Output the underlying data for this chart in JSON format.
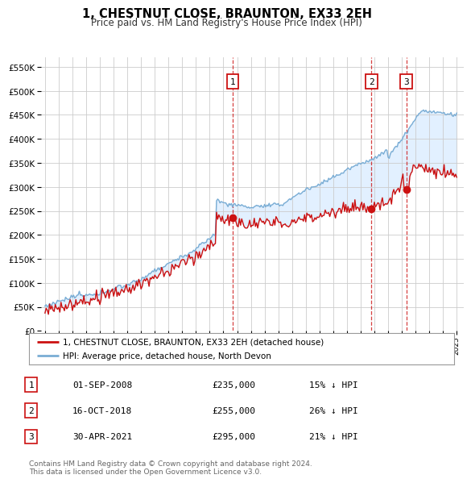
{
  "title": "1, CHESTNUT CLOSE, BRAUNTON, EX33 2EH",
  "subtitle": "Price paid vs. HM Land Registry's House Price Index (HPI)",
  "hpi_line_color": "#7aadd4",
  "price_line_color": "#cc1111",
  "marker_color": "#cc1111",
  "background_color": "#ddeeff",
  "fill_color": "#ddeeff",
  "ylim": [
    0,
    570000
  ],
  "yticks": [
    0,
    50000,
    100000,
    150000,
    200000,
    250000,
    300000,
    350000,
    400000,
    450000,
    500000,
    550000
  ],
  "legend_entries": [
    "1, CHESTNUT CLOSE, BRAUNTON, EX33 2EH (detached house)",
    "HPI: Average price, detached house, North Devon"
  ],
  "transactions": [
    {
      "num": 1,
      "date": "01-SEP-2008",
      "price": 235000,
      "pct": "15%",
      "dir": "↓"
    },
    {
      "num": 2,
      "date": "16-OCT-2018",
      "price": 255000,
      "pct": "26%",
      "dir": "↓"
    },
    {
      "num": 3,
      "date": "30-APR-2021",
      "price": 295000,
      "pct": "21%",
      "dir": "↓"
    }
  ],
  "footer": "Contains HM Land Registry data © Crown copyright and database right 2024.\nThis data is licensed under the Open Government Licence v3.0.",
  "vline_dates": [
    2008.67,
    2018.79,
    2021.33
  ],
  "vline_labels": [
    "1",
    "2",
    "3"
  ],
  "trans_prices": [
    235000,
    255000,
    295000
  ]
}
